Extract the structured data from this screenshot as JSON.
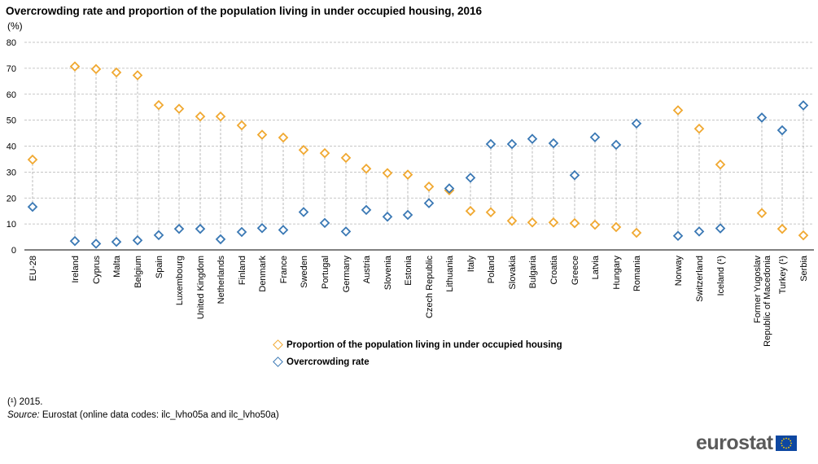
{
  "title": "Overcrowding rate and proportion of the population living in under occupied housing, 2016",
  "unit_label": "(%)",
  "chart_data": {
    "type": "scatter",
    "title": "Overcrowding rate and proportion of the population living in under occupied housing, 2016",
    "ylabel": "(%)",
    "ylim": [
      0,
      80
    ],
    "yticks": [
      0,
      10,
      20,
      30,
      40,
      50,
      60,
      70,
      80
    ],
    "grid": true,
    "legend_position": "bottom",
    "categories": [
      "EU-28",
      "Ireland",
      "Cyprus",
      "Malta",
      "Belgium",
      "Spain",
      "Luxembourg",
      "United Kingdom",
      "Netherlands",
      "Finland",
      "Denmark",
      "France",
      "Sweden",
      "Portugal",
      "Germany",
      "Austria",
      "Slovenia",
      "Estonia",
      "Czech Republic",
      "Lithuania",
      "Italy",
      "Poland",
      "Slovakia",
      "Bulgaria",
      "Croatia",
      "Greece",
      "Latvia",
      "Hungary",
      "Romania",
      "Norway",
      "Switzerland",
      "Iceland (¹)",
      "Former Yugoslav Republic of Macedonia",
      "Turkey (¹)",
      "Serbia"
    ],
    "category_lines": [
      [
        "EU-28"
      ],
      [
        "Ireland"
      ],
      [
        "Cyprus"
      ],
      [
        "Malta"
      ],
      [
        "Belgium"
      ],
      [
        "Spain"
      ],
      [
        "Luxembourg"
      ],
      [
        "United Kingdom"
      ],
      [
        "Netherlands"
      ],
      [
        "Finland"
      ],
      [
        "Denmark"
      ],
      [
        "France"
      ],
      [
        "Sweden"
      ],
      [
        "Portugal"
      ],
      [
        "Germany"
      ],
      [
        "Austria"
      ],
      [
        "Slovenia"
      ],
      [
        "Estonia"
      ],
      [
        "Czech Republic"
      ],
      [
        "Lithuania"
      ],
      [
        "Italy"
      ],
      [
        "Poland"
      ],
      [
        "Slovakia"
      ],
      [
        "Bulgaria"
      ],
      [
        "Croatia"
      ],
      [
        "Greece"
      ],
      [
        "Latvia"
      ],
      [
        "Hungary"
      ],
      [
        "Romania"
      ],
      [
        "Norway"
      ],
      [
        "Switzerland"
      ],
      [
        "Iceland (¹)"
      ],
      [
        "Former Yugoslav",
        "Republic of Macedonia"
      ],
      [
        "Turkey (¹)"
      ],
      [
        "Serbia"
      ]
    ],
    "series": [
      {
        "name": "Proportion of the population living in under occupied housing",
        "color": "#f0a830",
        "values": [
          34.8,
          70.7,
          69.7,
          68.4,
          67.3,
          55.8,
          54.4,
          51.4,
          51.4,
          48.0,
          44.4,
          43.3,
          38.5,
          37.3,
          35.5,
          31.3,
          29.6,
          29.0,
          24.4,
          23.0,
          15.0,
          14.5,
          11.2,
          10.6,
          10.6,
          10.3,
          9.7,
          8.8,
          6.6,
          53.8,
          46.7,
          32.9,
          14.2,
          8.1,
          5.6
        ]
      },
      {
        "name": "Overcrowding rate",
        "color": "#3a78b4",
        "values": [
          16.6,
          3.4,
          2.4,
          3.1,
          3.7,
          5.7,
          8.1,
          8.1,
          4.1,
          6.9,
          8.4,
          7.7,
          14.6,
          10.4,
          7.1,
          15.4,
          12.8,
          13.5,
          18.0,
          23.7,
          27.8,
          40.8,
          40.8,
          42.8,
          41.1,
          28.8,
          43.4,
          40.5,
          48.7,
          5.4,
          7.1,
          8.3,
          51.0,
          46.1,
          55.7
        ]
      }
    ]
  },
  "legend": [
    {
      "label": "Proportion of the population living in under occupied housing",
      "color": "#f0a830"
    },
    {
      "label": "Overcrowding rate",
      "color": "#3a78b4"
    }
  ],
  "footnote": "(¹) 2015.",
  "source_label": "Source:",
  "source_text": " Eurostat (online data codes: ilc_lvho05a and ilc_lvho50a)",
  "logo_text": "eurostat"
}
